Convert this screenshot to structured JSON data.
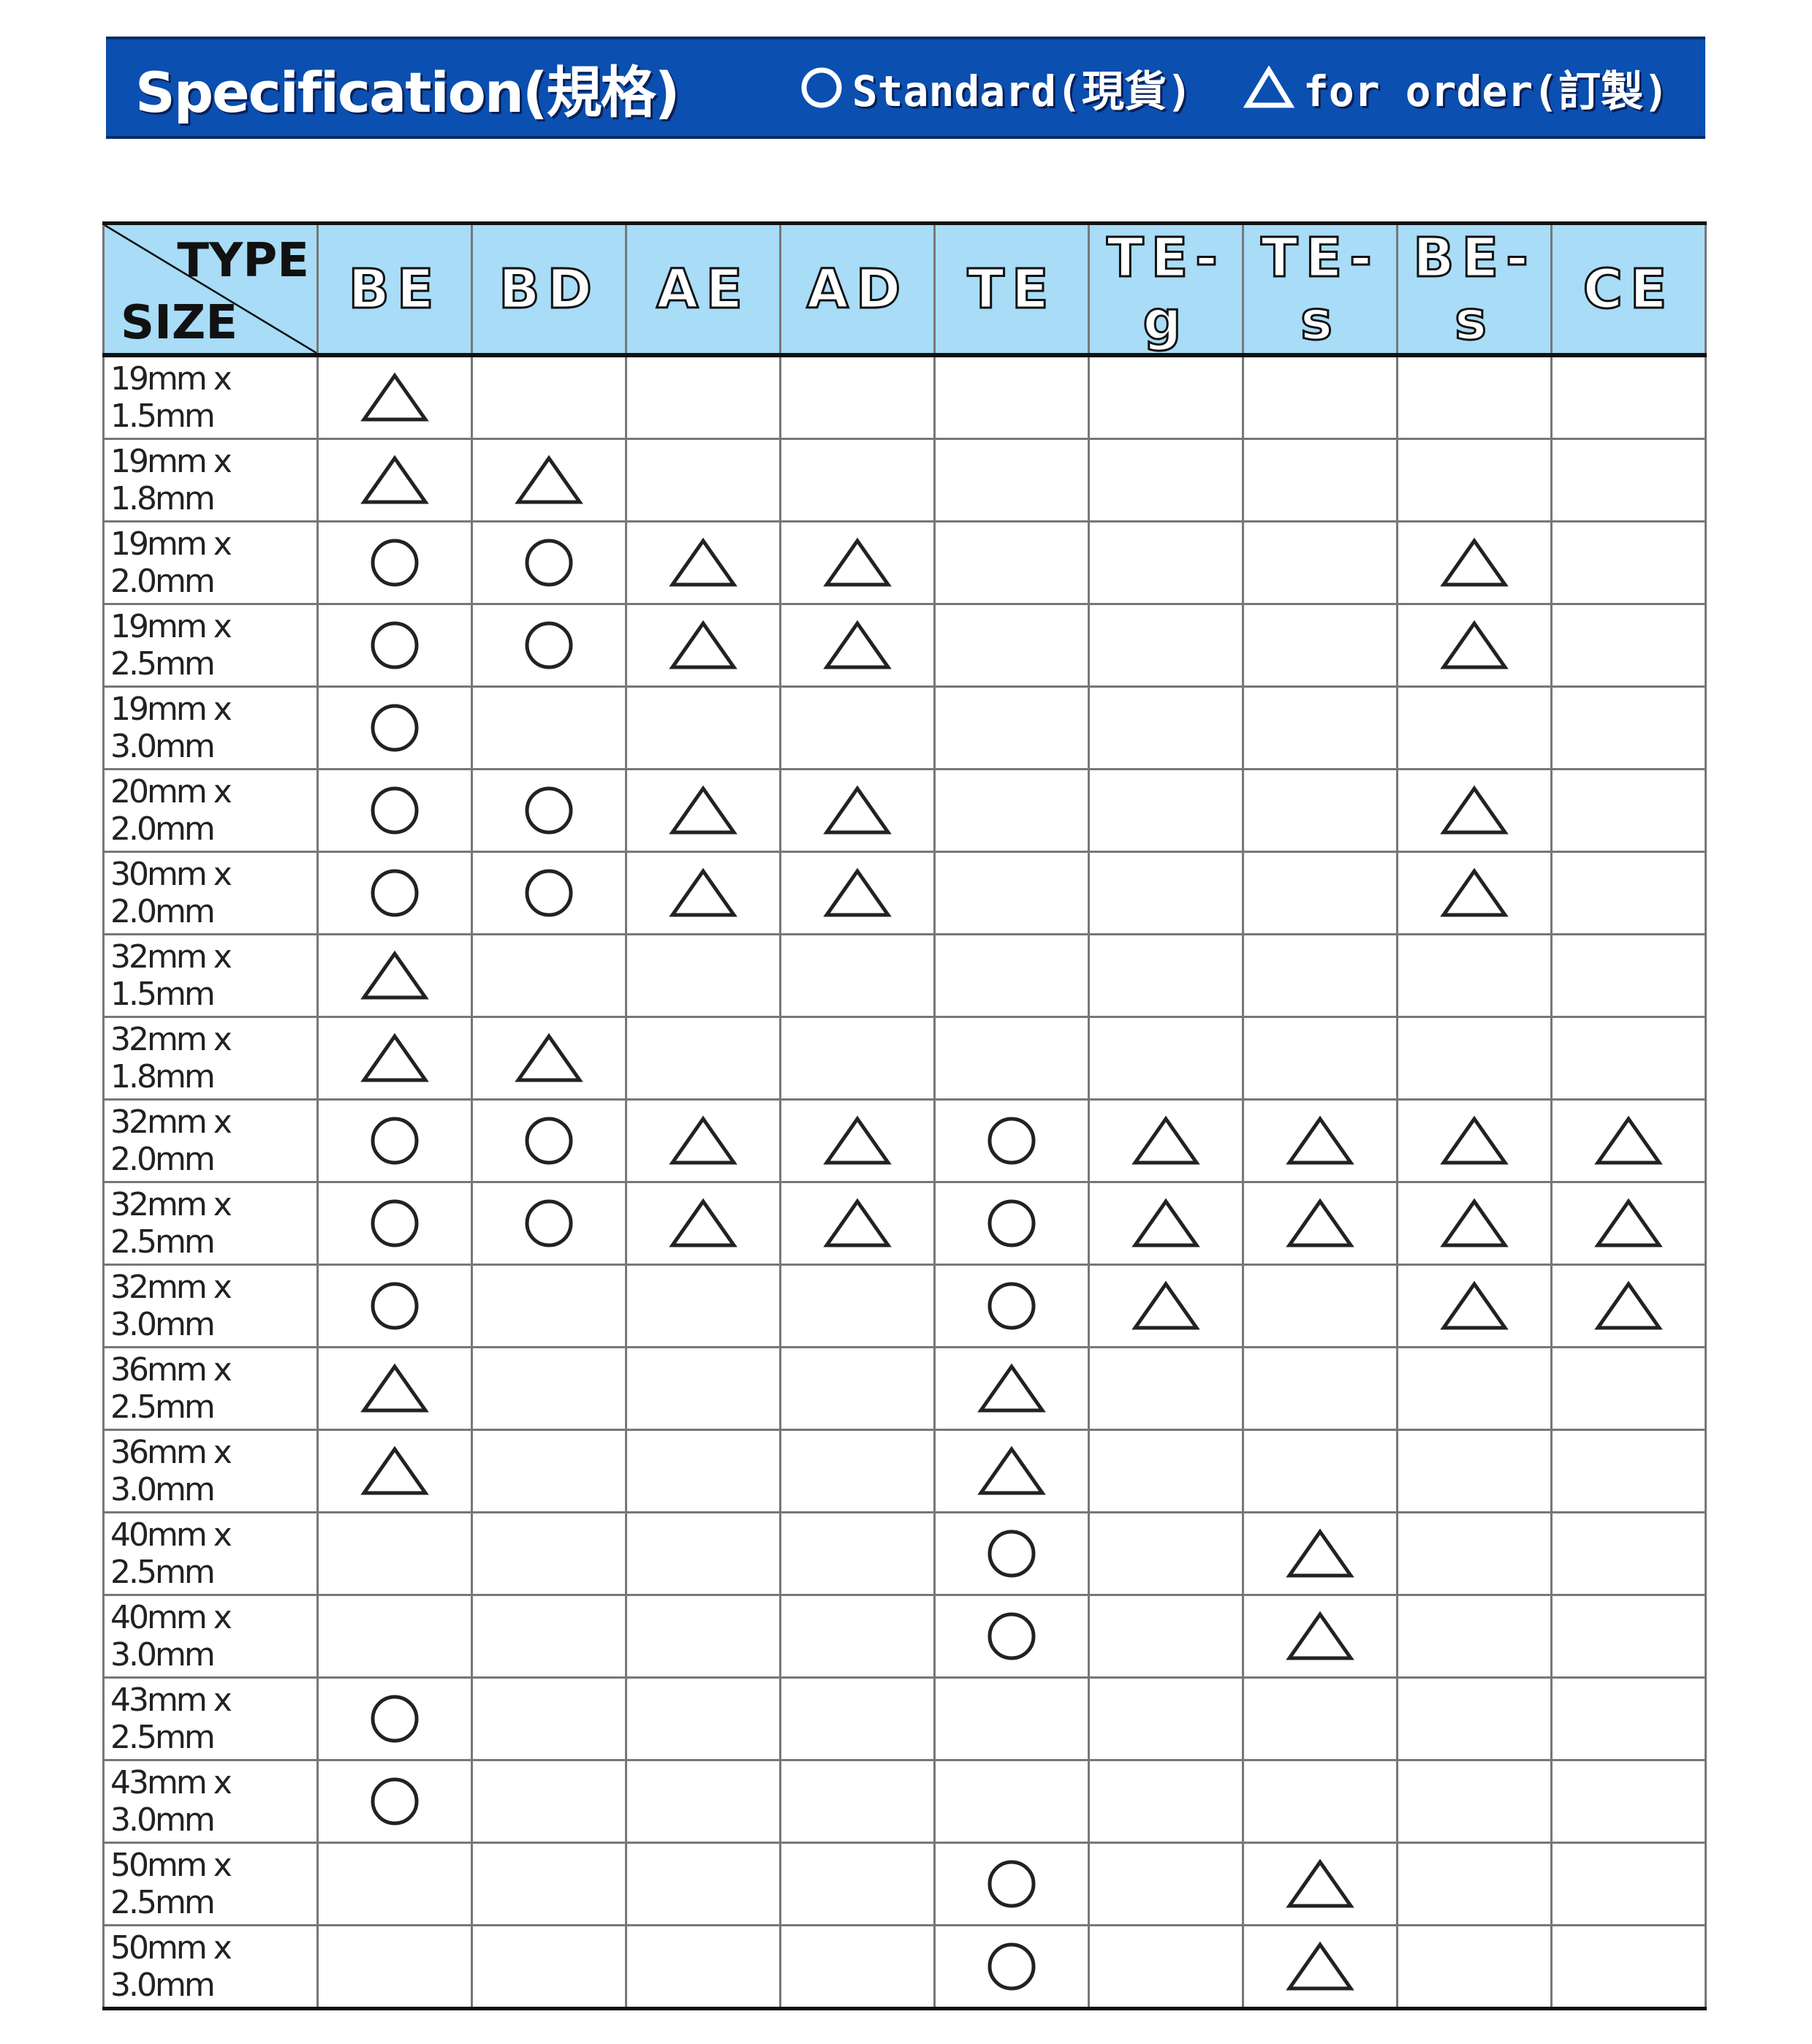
{
  "banner": {
    "title": "Specification(規格)",
    "legend_standard": "Standard(現貨)",
    "legend_order": "for order(訂製)",
    "colors": {
      "banner": "#0b4fb0",
      "header": "#a8dcf7"
    }
  },
  "table": {
    "corner_type": "TYPE",
    "corner_size": "SIZE",
    "columns": [
      "BE",
      "BD",
      "AE",
      "AD",
      "TE",
      "TE-g",
      "TE-s",
      "BE-s",
      "CE"
    ],
    "symbol_legend": {
      "O": "circle (Standard)",
      "T": "triangle (for order)"
    },
    "rows": [
      {
        "size": "19mm x 1.5mm",
        "marks": [
          "T",
          "",
          "",
          "",
          "",
          "",
          "",
          "",
          ""
        ]
      },
      {
        "size": "19mm x 1.8mm",
        "marks": [
          "T",
          "T",
          "",
          "",
          "",
          "",
          "",
          "",
          ""
        ]
      },
      {
        "size": "19mm x 2.0mm",
        "marks": [
          "O",
          "O",
          "T",
          "T",
          "",
          "",
          "",
          "T",
          ""
        ]
      },
      {
        "size": "19mm x 2.5mm",
        "marks": [
          "O",
          "O",
          "T",
          "T",
          "",
          "",
          "",
          "T",
          ""
        ]
      },
      {
        "size": "19mm x 3.0mm",
        "marks": [
          "O",
          "",
          "",
          "",
          "",
          "",
          "",
          "",
          ""
        ]
      },
      {
        "size": "20mm x 2.0mm",
        "marks": [
          "O",
          "O",
          "T",
          "T",
          "",
          "",
          "",
          "T",
          ""
        ]
      },
      {
        "size": "30mm x 2.0mm",
        "marks": [
          "O",
          "O",
          "T",
          "T",
          "",
          "",
          "",
          "T",
          ""
        ]
      },
      {
        "size": "32mm x 1.5mm",
        "marks": [
          "T",
          "",
          "",
          "",
          "",
          "",
          "",
          "",
          ""
        ]
      },
      {
        "size": "32mm x 1.8mm",
        "marks": [
          "T",
          "T",
          "",
          "",
          "",
          "",
          "",
          "",
          ""
        ]
      },
      {
        "size": "32mm x 2.0mm",
        "marks": [
          "O",
          "O",
          "T",
          "T",
          "O",
          "T",
          "T",
          "T",
          "T"
        ]
      },
      {
        "size": "32mm x 2.5mm",
        "marks": [
          "O",
          "O",
          "T",
          "T",
          "O",
          "T",
          "T",
          "T",
          "T"
        ]
      },
      {
        "size": "32mm x 3.0mm",
        "marks": [
          "O",
          "",
          "",
          "",
          "O",
          "T",
          "",
          "T",
          "T"
        ]
      },
      {
        "size": "36mm x 2.5mm",
        "marks": [
          "T",
          "",
          "",
          "",
          "T",
          "",
          "",
          "",
          ""
        ]
      },
      {
        "size": "36mm x 3.0mm",
        "marks": [
          "T",
          "",
          "",
          "",
          "T",
          "",
          "",
          "",
          ""
        ]
      },
      {
        "size": "40mm x 2.5mm",
        "marks": [
          "",
          "",
          "",
          "",
          "O",
          "",
          "T",
          "",
          ""
        ]
      },
      {
        "size": "40mm x 3.0mm",
        "marks": [
          "",
          "",
          "",
          "",
          "O",
          "",
          "T",
          "",
          ""
        ]
      },
      {
        "size": "43mm x 2.5mm",
        "marks": [
          "O",
          "",
          "",
          "",
          "",
          "",
          "",
          "",
          ""
        ]
      },
      {
        "size": "43mm x 3.0mm",
        "marks": [
          "O",
          "",
          "",
          "",
          "",
          "",
          "",
          "",
          ""
        ]
      },
      {
        "size": "50mm x 2.5mm",
        "marks": [
          "",
          "",
          "",
          "",
          "O",
          "",
          "T",
          "",
          ""
        ]
      },
      {
        "size": "50mm x 3.0mm",
        "marks": [
          "",
          "",
          "",
          "",
          "O",
          "",
          "T",
          "",
          ""
        ]
      }
    ]
  }
}
